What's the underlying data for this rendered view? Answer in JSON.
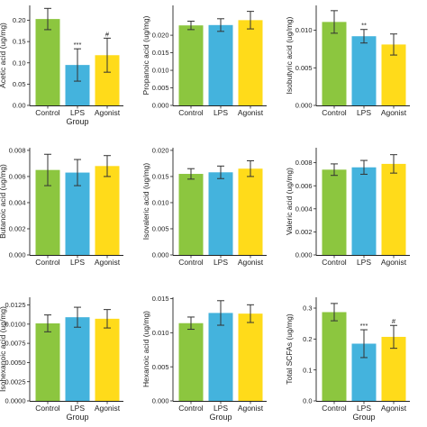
{
  "colors": {
    "Control": "#8cc63f",
    "LPS": "#44b3dd",
    "Agonist": "#ffdb1a"
  },
  "chart_data": [
    {
      "type": "bar",
      "categories": [
        "Control",
        "LPS",
        "Agonist"
      ],
      "values": [
        0.203,
        0.095,
        0.118
      ],
      "errors": [
        0.025,
        0.038,
        0.04
      ],
      "significance": [
        "",
        "***",
        "#"
      ],
      "ylabel": "Acetic acid (ug/mg)",
      "xlabel": "Group",
      "yticks": [
        0.0,
        0.05,
        0.1,
        0.15,
        0.2
      ],
      "ytick_labels": [
        "0.00",
        "0.05",
        "0.10",
        "0.15",
        "0.20"
      ],
      "ylim": [
        0,
        0.235
      ]
    },
    {
      "type": "bar",
      "categories": [
        "Control",
        "LPS",
        "Agonist"
      ],
      "values": [
        0.0228,
        0.0229,
        0.0243
      ],
      "errors": [
        0.0012,
        0.0018,
        0.0025
      ],
      "significance": [
        "",
        "",
        ""
      ],
      "ylabel": "Propanoic acid (ug/mg)",
      "xlabel": "",
      "yticks": [
        0.0,
        0.005,
        0.01,
        0.015,
        0.02
      ],
      "ytick_labels": [
        "0.000",
        "0.005",
        "0.010",
        "0.015",
        "0.020"
      ],
      "ylim": [
        0,
        0.0285
      ]
    },
    {
      "type": "bar",
      "categories": [
        "Control",
        "LPS",
        "Agonist"
      ],
      "values": [
        0.0111,
        0.0092,
        0.0081
      ],
      "errors": [
        0.0015,
        0.0009,
        0.0014
      ],
      "significance": [
        "",
        "**",
        ""
      ],
      "ylabel": "Isobutyric acid (ug/mg)",
      "xlabel": "",
      "yticks": [
        0.0,
        0.005,
        0.01
      ],
      "ytick_labels": [
        "0.000",
        "0.005",
        "0.010"
      ],
      "ylim": [
        0,
        0.0133
      ]
    },
    {
      "type": "bar",
      "categories": [
        "Control",
        "LPS",
        "Agonist"
      ],
      "values": [
        0.0065,
        0.0063,
        0.0068
      ],
      "errors": [
        0.0012,
        0.001,
        0.0008
      ],
      "significance": [
        "",
        "",
        ""
      ],
      "ylabel": "Butanoic acid (ug/mg)",
      "xlabel": "",
      "yticks": [
        0.0,
        0.002,
        0.004,
        0.006,
        0.008
      ],
      "ytick_labels": [
        "0.000",
        "0.002",
        "0.004",
        "0.006",
        "0.008"
      ],
      "ylim": [
        0,
        0.0082
      ]
    },
    {
      "type": "bar",
      "categories": [
        "Control",
        "LPS",
        "Agonist"
      ],
      "values": [
        0.0155,
        0.0158,
        0.0165
      ],
      "errors": [
        0.001,
        0.0012,
        0.0015
      ],
      "significance": [
        "",
        "",
        ""
      ],
      "ylabel": "Isovaleric acid (ug/mg)",
      "xlabel": "",
      "yticks": [
        0.0,
        0.005,
        0.01,
        0.015,
        0.02
      ],
      "ytick_labels": [
        "0.000",
        "0.005",
        "0.010",
        "0.015",
        "0.020"
      ],
      "ylim": [
        0,
        0.0205
      ]
    },
    {
      "type": "bar",
      "categories": [
        "Control",
        "LPS",
        "Agonist"
      ],
      "values": [
        0.0074,
        0.0076,
        0.0079
      ],
      "errors": [
        0.0005,
        0.0006,
        0.0008
      ],
      "significance": [
        "",
        "",
        ""
      ],
      "ylabel": "Valeric acid (ug/mg)",
      "xlabel": "",
      "yticks": [
        0.0,
        0.002,
        0.004,
        0.006,
        0.008
      ],
      "ytick_labels": [
        "0.000",
        "0.002",
        "0.004",
        "0.006",
        "0.008"
      ],
      "ylim": [
        0,
        0.0093
      ]
    },
    {
      "type": "bar",
      "categories": [
        "Control",
        "LPS",
        "Agonist"
      ],
      "values": [
        0.0101,
        0.0109,
        0.0107
      ],
      "errors": [
        0.0011,
        0.0013,
        0.0012
      ],
      "significance": [
        "",
        "",
        ""
      ],
      "ylabel": "Isohexanoic acid (ug/mg)",
      "xlabel": "Group",
      "yticks": [
        0.0,
        0.0025,
        0.005,
        0.0075,
        0.01,
        0.0125
      ],
      "ytick_labels": [
        "0.0000",
        "0.0025",
        "0.0050",
        "0.0075",
        "0.0100",
        "0.0125"
      ],
      "ylim": [
        0,
        0.0135
      ]
    },
    {
      "type": "bar",
      "categories": [
        "Control",
        "LPS",
        "Agonist"
      ],
      "values": [
        0.0114,
        0.0129,
        0.0128
      ],
      "errors": [
        0.0009,
        0.0018,
        0.0013
      ],
      "significance": [
        "",
        "",
        ""
      ],
      "ylabel": "Hexanoic acid (ug/mg)",
      "xlabel": "Group",
      "yticks": [
        0.0,
        0.005,
        0.01,
        0.015
      ],
      "ytick_labels": [
        "0.000",
        "0.005",
        "0.010",
        "0.015"
      ],
      "ylim": [
        0,
        0.0152
      ]
    },
    {
      "type": "bar",
      "categories": [
        "Control",
        "LPS",
        "Agonist"
      ],
      "values": [
        0.287,
        0.185,
        0.207
      ],
      "errors": [
        0.028,
        0.045,
        0.037
      ],
      "significance": [
        "",
        "***",
        "#"
      ],
      "ylabel": "Total SCFAs (ug/mg)",
      "xlabel": "Group",
      "yticks": [
        0.0,
        0.1,
        0.2,
        0.3
      ],
      "ytick_labels": [
        "0.0",
        "0.1",
        "0.2",
        "0.3"
      ],
      "ylim": [
        0,
        0.335
      ]
    }
  ]
}
